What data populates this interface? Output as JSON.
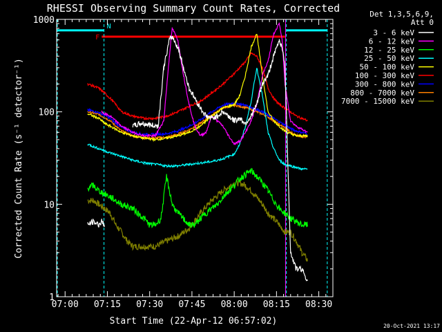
{
  "chart_data": {
    "type": "line",
    "title": "RHESSI Observing Summary Count Rates, Corrected",
    "xlabel": "Start Time (22-Apr-12 06:57:02)",
    "ylabel": "Corrected Count Rate (s⁻¹ detector⁻¹)",
    "y_scale": "log",
    "ylim": [
      1,
      1000
    ],
    "xlim_minutes_from_0700": [
      -3,
      95
    ],
    "x_ticks": [
      "07:00",
      "07:15",
      "07:30",
      "07:45",
      "08:00",
      "08:15",
      "08:30"
    ],
    "y_ticks": [
      "1",
      "10",
      "100",
      "1000"
    ],
    "legend_title_lines": [
      "Det 1,3,5,6,9,",
      "Att 0"
    ],
    "legend_position": "outside-right",
    "series": [
      {
        "name": "3 - 6 keV",
        "color": "#ffffff",
        "x": [
          8,
          10,
          12,
          13,
          14,
          16,
          20,
          24,
          27,
          30,
          33,
          35,
          37,
          38,
          40,
          42,
          44,
          46,
          48,
          50,
          52,
          54,
          56,
          58,
          60,
          62,
          64,
          66,
          68,
          70,
          72,
          74,
          76,
          77,
          78,
          80,
          82,
          84,
          86
        ],
        "y": [
          6,
          6.5,
          6,
          6.5,
          6,
          null,
          null,
          70,
          75,
          72,
          70,
          300,
          600,
          650,
          500,
          300,
          180,
          140,
          110,
          90,
          85,
          90,
          100,
          90,
          80,
          85,
          75,
          90,
          120,
          200,
          250,
          400,
          600,
          500,
          300,
          3,
          2,
          2,
          1.5
        ]
      },
      {
        "name": "6 - 12 keV",
        "color": "#ff00ff",
        "x": [
          13,
          14,
          16,
          20,
          24,
          28,
          32,
          35,
          37,
          38,
          40,
          42,
          44,
          46,
          48,
          50,
          52,
          54,
          56,
          58,
          60,
          62,
          64,
          66,
          68,
          70,
          72,
          74,
          76,
          77,
          78,
          80,
          82,
          84,
          86
        ],
        "y": [
          100,
          95,
          90,
          70,
          60,
          55,
          55,
          80,
          400,
          800,
          600,
          250,
          120,
          70,
          55,
          60,
          90,
          80,
          70,
          55,
          45,
          48,
          60,
          80,
          120,
          250,
          350,
          700,
          900,
          600,
          200,
          80,
          70,
          65,
          60
        ]
      },
      {
        "name": "12 - 25 keV",
        "color": "#00ff00",
        "x": [
          8,
          10,
          12,
          16,
          20,
          24,
          28,
          30,
          32,
          34,
          36,
          38,
          40,
          42,
          44,
          46,
          48,
          50,
          52,
          54,
          56,
          58,
          60,
          62,
          64,
          66,
          68,
          70,
          72,
          74,
          76,
          78,
          80,
          82,
          84,
          86
        ],
        "y": [
          15,
          16,
          14,
          12,
          10,
          9,
          7,
          6,
          6,
          7,
          20,
          10,
          8,
          7,
          6,
          6,
          7,
          8,
          9,
          10,
          12,
          14,
          16,
          19,
          21,
          23,
          20,
          17,
          14,
          11,
          9,
          8,
          7,
          6.5,
          6,
          6
        ]
      },
      {
        "name": "25 - 50 keV",
        "color": "#00ffff",
        "x": [
          8,
          10,
          12,
          14,
          16,
          20,
          24,
          28,
          32,
          36,
          40,
          44,
          48,
          52,
          56,
          60,
          62,
          64,
          66,
          68,
          70,
          72,
          74,
          76,
          78,
          80,
          82,
          84,
          86
        ],
        "y": [
          45,
          42,
          40,
          38,
          36,
          33,
          30,
          28,
          27,
          26,
          26,
          27,
          28,
          29,
          31,
          35,
          45,
          70,
          130,
          300,
          150,
          60,
          40,
          30,
          27,
          26,
          25,
          24,
          24
        ]
      },
      {
        "name": "50 - 100 keV",
        "color": "#ffff00",
        "x": [
          8,
          10,
          12,
          14,
          16,
          20,
          24,
          28,
          32,
          36,
          40,
          44,
          48,
          52,
          56,
          60,
          62,
          64,
          66,
          68,
          70,
          72,
          74,
          76,
          78,
          80,
          82,
          84,
          86
        ],
        "y": [
          95,
          90,
          85,
          75,
          70,
          60,
          55,
          52,
          50,
          52,
          55,
          60,
          70,
          90,
          110,
          120,
          150,
          250,
          500,
          700,
          250,
          100,
          80,
          70,
          62,
          58,
          55,
          55,
          55
        ]
      },
      {
        "name": "100 - 300 keV",
        "color": "#ff0000",
        "x": [
          8,
          10,
          12,
          14,
          16,
          18,
          20,
          24,
          28,
          32,
          36,
          40,
          44,
          48,
          52,
          56,
          60,
          64,
          66,
          68,
          70,
          72,
          74,
          76,
          78,
          80,
          82,
          84,
          86
        ],
        "y": [
          200,
          190,
          180,
          160,
          140,
          120,
          100,
          90,
          85,
          85,
          90,
          100,
          115,
          130,
          160,
          200,
          260,
          350,
          430,
          400,
          300,
          180,
          140,
          120,
          110,
          100,
          90,
          85,
          80
        ]
      },
      {
        "name": "300 - 800 keV",
        "color": "#0000ff",
        "x": [
          8,
          10,
          12,
          14,
          16,
          18,
          20,
          24,
          28,
          32,
          36,
          40,
          44,
          48,
          52,
          56,
          60,
          64,
          66,
          68,
          70,
          72,
          74,
          76,
          78,
          80,
          82,
          84,
          86
        ],
        "y": [
          105,
          102,
          98,
          92,
          85,
          75,
          68,
          60,
          57,
          57,
          58,
          62,
          70,
          82,
          100,
          118,
          125,
          118,
          112,
          106,
          100,
          92,
          85,
          78,
          72,
          66,
          62,
          60,
          58
        ]
      },
      {
        "name": "800 - 7000 keV",
        "color": "#ff8000",
        "x": [
          8,
          10,
          12,
          14,
          16,
          18,
          20,
          24,
          28,
          32,
          36,
          40,
          44,
          48,
          52,
          56,
          60,
          64,
          66,
          68,
          70,
          72,
          74,
          76,
          78,
          80,
          82,
          84,
          86
        ],
        "y": [
          100,
          97,
          93,
          87,
          80,
          70,
          62,
          55,
          52,
          52,
          53,
          57,
          64,
          75,
          92,
          110,
          118,
          112,
          106,
          100,
          95,
          88,
          80,
          73,
          67,
          60,
          56,
          54,
          53
        ]
      },
      {
        "name": "7000 - 15000 keV",
        "color": "#808000",
        "x": [
          8,
          10,
          12,
          14,
          16,
          18,
          20,
          22,
          24,
          28,
          32,
          36,
          40,
          44,
          48,
          52,
          56,
          60,
          62,
          64,
          66,
          68,
          70,
          72,
          74,
          76,
          78,
          80,
          82,
          84,
          86
        ],
        "y": [
          11,
          11,
          10,
          9,
          8,
          6,
          5,
          4,
          3.5,
          3.5,
          3.5,
          4,
          4.5,
          5.5,
          8,
          11,
          14,
          17,
          17,
          16,
          14,
          12,
          10,
          8,
          7,
          6,
          5,
          5,
          4,
          3,
          2.5
        ]
      }
    ],
    "annotations": [
      {
        "text": "F",
        "color": "#ff0000",
        "x_start": 13,
        "x_end": 78,
        "y": 650
      },
      {
        "text": "N",
        "color": "#00ffff",
        "x_start": 13.8,
        "x_end": 78.5
      }
    ]
  },
  "footer": {
    "timestamp": "20-Oct-2021 13:17"
  }
}
